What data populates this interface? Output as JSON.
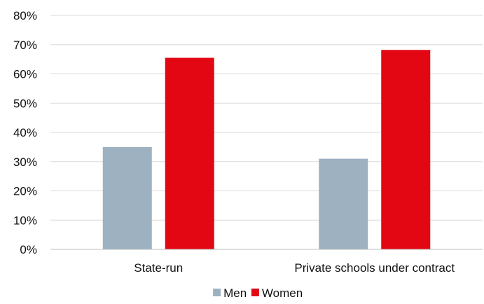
{
  "chart_data": {
    "type": "bar",
    "title": "",
    "xlabel": "",
    "ylabel": "",
    "categories": [
      "State-run",
      "Private schools under contract"
    ],
    "series": [
      {
        "name": "Men",
        "color": "#9eb1c1",
        "values": [
          35,
          31
        ]
      },
      {
        "name": "Women",
        "color": "#e30613",
        "values": [
          65.5,
          68.2
        ]
      }
    ],
    "ylim": [
      0,
      80
    ],
    "yticks": [
      0,
      10,
      20,
      30,
      40,
      50,
      60,
      70,
      80
    ],
    "ytick_labels": [
      "0%",
      "10%",
      "20%",
      "30%",
      "40%",
      "50%",
      "60%",
      "70%",
      "80%"
    ],
    "grid": true,
    "legend_position": "bottom"
  }
}
